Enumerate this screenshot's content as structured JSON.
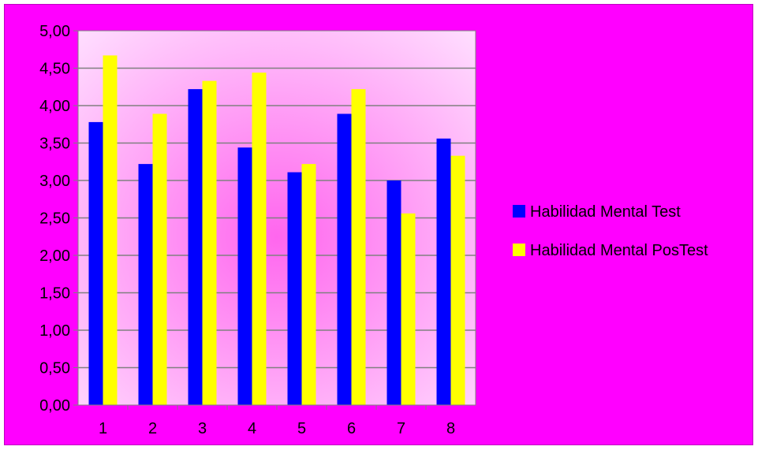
{
  "colors": {
    "frame_background": "#ff00ff",
    "series_test": "#0000ff",
    "series_postest": "#ffff00",
    "grid": "#808080",
    "plot_center": "#ff66ee",
    "plot_edge": "#ffe0ff"
  },
  "chart_data": {
    "type": "bar",
    "title": "",
    "xlabel": "",
    "ylabel": "",
    "categories": [
      "1",
      "2",
      "3",
      "4",
      "5",
      "6",
      "7",
      "8"
    ],
    "series": [
      {
        "name": "Habilidad Mental Test",
        "color": "#0000ff",
        "values": [
          3.78,
          3.22,
          4.22,
          3.44,
          3.11,
          3.89,
          3.0,
          3.56
        ]
      },
      {
        "name": "Habilidad Mental PosTest",
        "color": "#ffff00",
        "values": [
          4.67,
          3.89,
          4.33,
          4.44,
          3.22,
          4.22,
          2.56,
          3.33
        ]
      }
    ],
    "ylim": [
      0,
      5
    ],
    "yticks": [
      "0,00",
      "0,50",
      "1,00",
      "1,50",
      "2,00",
      "2,50",
      "3,00",
      "3,50",
      "4,00",
      "4,50",
      "5,00"
    ],
    "grid": true,
    "legend_position": "right"
  }
}
